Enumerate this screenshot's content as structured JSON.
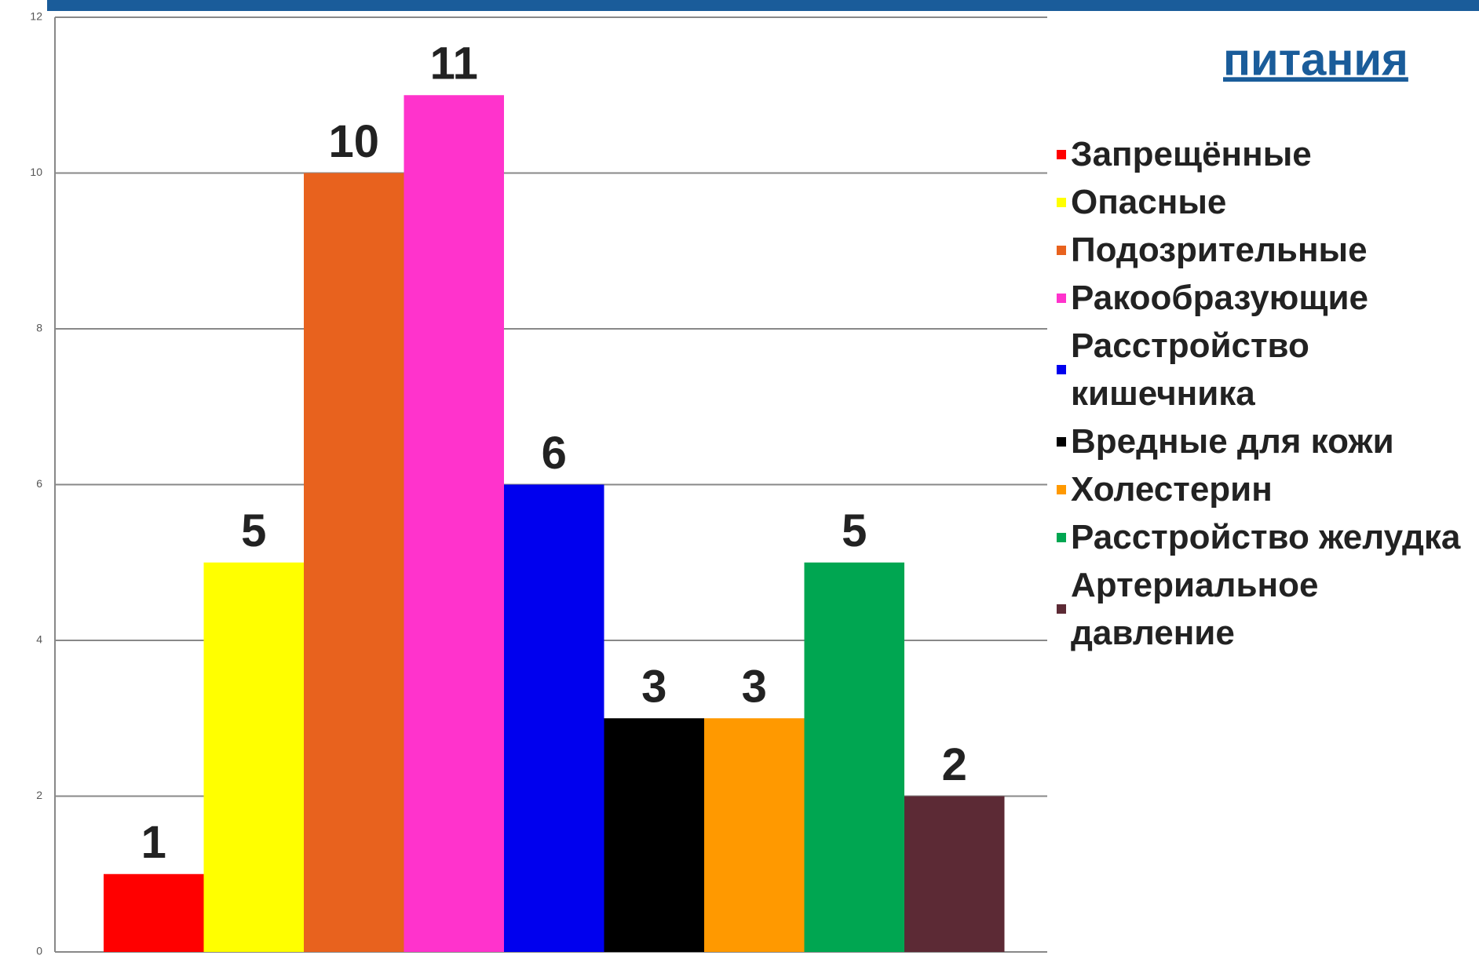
{
  "chart_data": {
    "type": "bar",
    "title": "питания",
    "series": [
      {
        "name": "Запрещённые",
        "color": "#ff0000",
        "values": [
          1
        ]
      },
      {
        "name": "Опасные",
        "color": "#ffff00",
        "values": [
          5
        ]
      },
      {
        "name": "Подозрительные",
        "color": "#e8621e",
        "values": [
          10
        ]
      },
      {
        "name": "Ракообразующие",
        "color": "#ff33cc",
        "values": [
          11
        ]
      },
      {
        "name": "Расстройство кишечника",
        "color": "#0000ee",
        "values": [
          6
        ]
      },
      {
        "name": "Вредные для кожи",
        "color": "#000000",
        "values": [
          3
        ]
      },
      {
        "name": "Холестерин",
        "color": "#ff9900",
        "values": [
          3
        ]
      },
      {
        "name": "Расстройство желудка",
        "color": "#00a651",
        "values": [
          5
        ]
      },
      {
        "name": "Артериальное давление",
        "color": "#5c2a35",
        "values": [
          2
        ]
      }
    ],
    "ylim": [
      0,
      12
    ],
    "yticks": [
      0,
      2,
      4,
      6,
      8,
      10,
      12
    ],
    "grid": true
  }
}
